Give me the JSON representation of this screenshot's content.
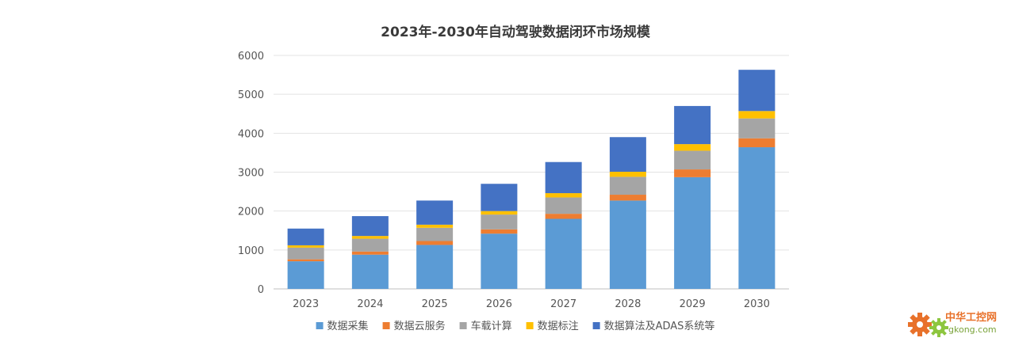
{
  "chart_data": {
    "type": "bar",
    "stacked": true,
    "title": "2023年-2030年自动驾驶数据闭环市场规模",
    "categories": [
      "2023",
      "2024",
      "2025",
      "2026",
      "2027",
      "2028",
      "2029",
      "2030"
    ],
    "ylim": [
      0,
      6000
    ],
    "yticks": [
      0,
      1000,
      2000,
      3000,
      4000,
      5000,
      6000
    ],
    "grid": true,
    "legend_position": "bottom",
    "series": [
      {
        "name": "数据采集",
        "color": "#5b9bd5",
        "values": [
          710,
          880,
          1130,
          1420,
          1800,
          2270,
          2870,
          3640
        ]
      },
      {
        "name": "数据云服务",
        "color": "#ed7d31",
        "values": [
          50,
          80,
          100,
          110,
          130,
          150,
          200,
          230
        ]
      },
      {
        "name": "车载计算",
        "color": "#a5a5a5",
        "values": [
          300,
          330,
          340,
          380,
          420,
          460,
          480,
          510
        ]
      },
      {
        "name": "数据标注",
        "color": "#ffc000",
        "values": [
          60,
          70,
          80,
          90,
          110,
          130,
          170,
          190
        ]
      },
      {
        "name": "数据算法及ADAS系统等",
        "color": "#4472c4",
        "values": [
          430,
          510,
          620,
          700,
          800,
          890,
          980,
          1060
        ]
      }
    ]
  },
  "watermark": {
    "text": "中华工控网",
    "url": "gkong.com"
  }
}
